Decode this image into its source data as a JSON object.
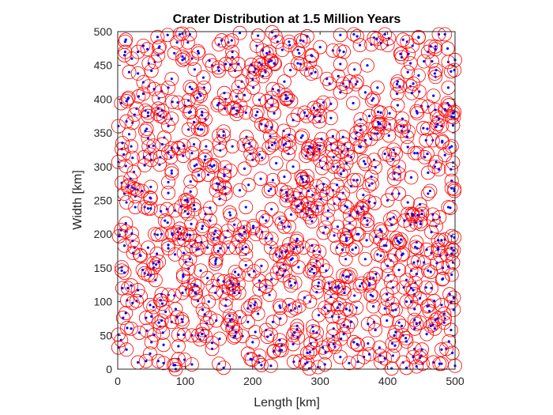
{
  "chart_data": {
    "type": "scatter",
    "title": "Crater Distribution at 1.5 Million Years",
    "xlabel": "Length [km]",
    "ylabel": "Width [km]",
    "xlim": [
      0,
      500
    ],
    "ylim": [
      0,
      500
    ],
    "xticks": [
      "0",
      "100",
      "200",
      "300",
      "400",
      "500"
    ],
    "yticks": [
      "0",
      "50",
      "100",
      "150",
      "200",
      "250",
      "300",
      "350",
      "400",
      "450",
      "500"
    ],
    "grid": false,
    "crater_radius_km": 10,
    "crater_count_approx": 1100,
    "series": [
      {
        "name": "crater rims",
        "marker": "circle",
        "color": "#ff0000"
      },
      {
        "name": "crater centers",
        "marker": "dot",
        "color": "#0000ff"
      }
    ],
    "sample_points": [
      [
        12,
        488
      ],
      [
        30,
        470
      ],
      [
        55,
        455
      ],
      [
        80,
        430
      ],
      [
        110,
        415
      ],
      [
        140,
        450
      ],
      [
        170,
        470
      ],
      [
        195,
        440
      ],
      [
        225,
        470
      ],
      [
        255,
        480
      ],
      [
        285,
        455
      ],
      [
        310,
        430
      ],
      [
        335,
        470
      ],
      [
        370,
        450
      ],
      [
        400,
        480
      ],
      [
        430,
        440
      ],
      [
        460,
        470
      ],
      [
        490,
        455
      ],
      [
        15,
        400
      ],
      [
        45,
        380
      ],
      [
        75,
        360
      ],
      [
        100,
        390
      ],
      [
        130,
        370
      ],
      [
        160,
        400
      ],
      [
        190,
        380
      ],
      [
        220,
        360
      ],
      [
        250,
        400
      ],
      [
        280,
        375
      ],
      [
        300,
        390
      ],
      [
        330,
        410
      ],
      [
        360,
        360
      ],
      [
        390,
        380
      ],
      [
        420,
        360
      ],
      [
        450,
        390
      ],
      [
        480,
        360
      ],
      [
        20,
        330
      ],
      [
        50,
        310
      ],
      [
        80,
        290
      ],
      [
        110,
        320
      ],
      [
        140,
        300
      ],
      [
        170,
        330
      ],
      [
        200,
        310
      ],
      [
        230,
        280
      ],
      [
        260,
        300
      ],
      [
        290,
        320
      ],
      [
        320,
        300
      ],
      [
        350,
        280
      ],
      [
        380,
        310
      ],
      [
        410,
        290
      ],
      [
        440,
        320
      ],
      [
        470,
        300
      ],
      [
        495,
        330
      ],
      [
        10,
        260
      ],
      [
        40,
        240
      ],
      [
        70,
        220
      ],
      [
        100,
        250
      ],
      [
        130,
        230
      ],
      [
        160,
        260
      ],
      [
        190,
        240
      ],
      [
        220,
        220
      ],
      [
        250,
        250
      ],
      [
        280,
        230
      ],
      [
        310,
        260
      ],
      [
        340,
        240
      ],
      [
        370,
        220
      ],
      [
        400,
        250
      ],
      [
        430,
        230
      ],
      [
        460,
        260
      ],
      [
        490,
        240
      ],
      [
        25,
        180
      ],
      [
        55,
        200
      ],
      [
        85,
        170
      ],
      [
        115,
        190
      ],
      [
        145,
        160
      ],
      [
        175,
        180
      ],
      [
        205,
        200
      ],
      [
        235,
        170
      ],
      [
        265,
        190
      ],
      [
        295,
        160
      ],
      [
        325,
        180
      ],
      [
        355,
        200
      ],
      [
        385,
        170
      ],
      [
        415,
        190
      ],
      [
        445,
        160
      ],
      [
        475,
        180
      ],
      [
        15,
        120
      ],
      [
        45,
        140
      ],
      [
        75,
        110
      ],
      [
        105,
        130
      ],
      [
        135,
        100
      ],
      [
        165,
        120
      ],
      [
        195,
        140
      ],
      [
        225,
        110
      ],
      [
        255,
        130
      ],
      [
        285,
        100
      ],
      [
        315,
        120
      ],
      [
        345,
        140
      ],
      [
        375,
        110
      ],
      [
        405,
        130
      ],
      [
        435,
        100
      ],
      [
        465,
        120
      ],
      [
        495,
        140
      ],
      [
        20,
        60
      ],
      [
        50,
        40
      ],
      [
        80,
        70
      ],
      [
        110,
        50
      ],
      [
        140,
        30
      ],
      [
        170,
        60
      ],
      [
        200,
        40
      ],
      [
        230,
        70
      ],
      [
        260,
        50
      ],
      [
        290,
        30
      ],
      [
        320,
        60
      ],
      [
        350,
        40
      ],
      [
        380,
        70
      ],
      [
        410,
        50
      ],
      [
        440,
        30
      ],
      [
        470,
        60
      ],
      [
        30,
        10
      ],
      [
        90,
        15
      ],
      [
        150,
        8
      ],
      [
        210,
        20
      ],
      [
        270,
        12
      ],
      [
        330,
        18
      ],
      [
        390,
        10
      ],
      [
        450,
        20
      ],
      [
        500,
        5
      ]
    ]
  }
}
